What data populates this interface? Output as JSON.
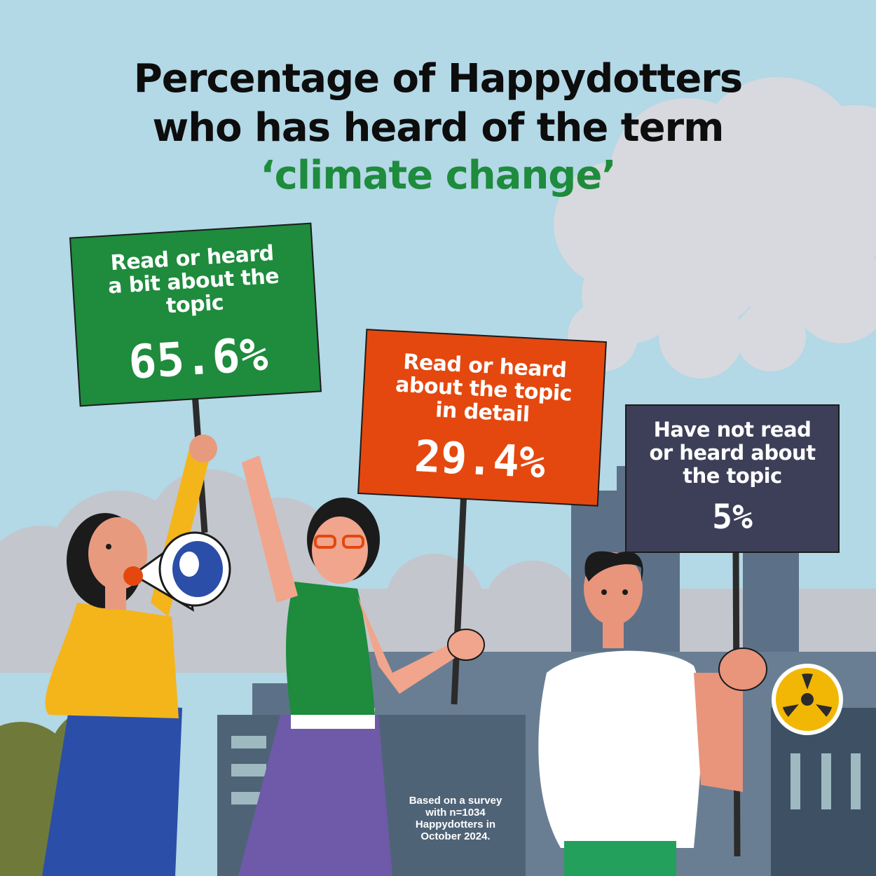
{
  "title": {
    "line1": "Percentage of Happydotters",
    "line2": "who has heard of the term",
    "highlight": "‘climate change’"
  },
  "chart_data": {
    "type": "bar",
    "categories": [
      "Read or heard a bit about the topic",
      "Read or heard about the topic in detail",
      "Have not read or heard about the topic"
    ],
    "values": [
      65.6,
      29.4,
      5
    ],
    "unit": "%"
  },
  "signs": [
    {
      "label_lines": [
        "Read or heard",
        "a bit about the",
        "topic"
      ],
      "value": "65.6%",
      "color": "#1e8b3d"
    },
    {
      "label_lines": [
        "Read or heard",
        "about the topic",
        "in detail"
      ],
      "value": "29.4%",
      "color": "#e4480f"
    },
    {
      "label_lines": [
        "Have not read",
        "or heard about",
        "the topic"
      ],
      "value": "5%",
      "color": "#3d3f58"
    }
  ],
  "footnote_lines": [
    "Based on a survey",
    "with n=1034",
    "Happydotters in",
    "October 2024."
  ],
  "colors": {
    "sky": "#b3d8e6",
    "smoke": "#c9cbd0",
    "factory": "#5c7187",
    "accent_green": "#1e8b3d"
  },
  "icons": [
    "megaphone-icon",
    "radiation-icon"
  ]
}
